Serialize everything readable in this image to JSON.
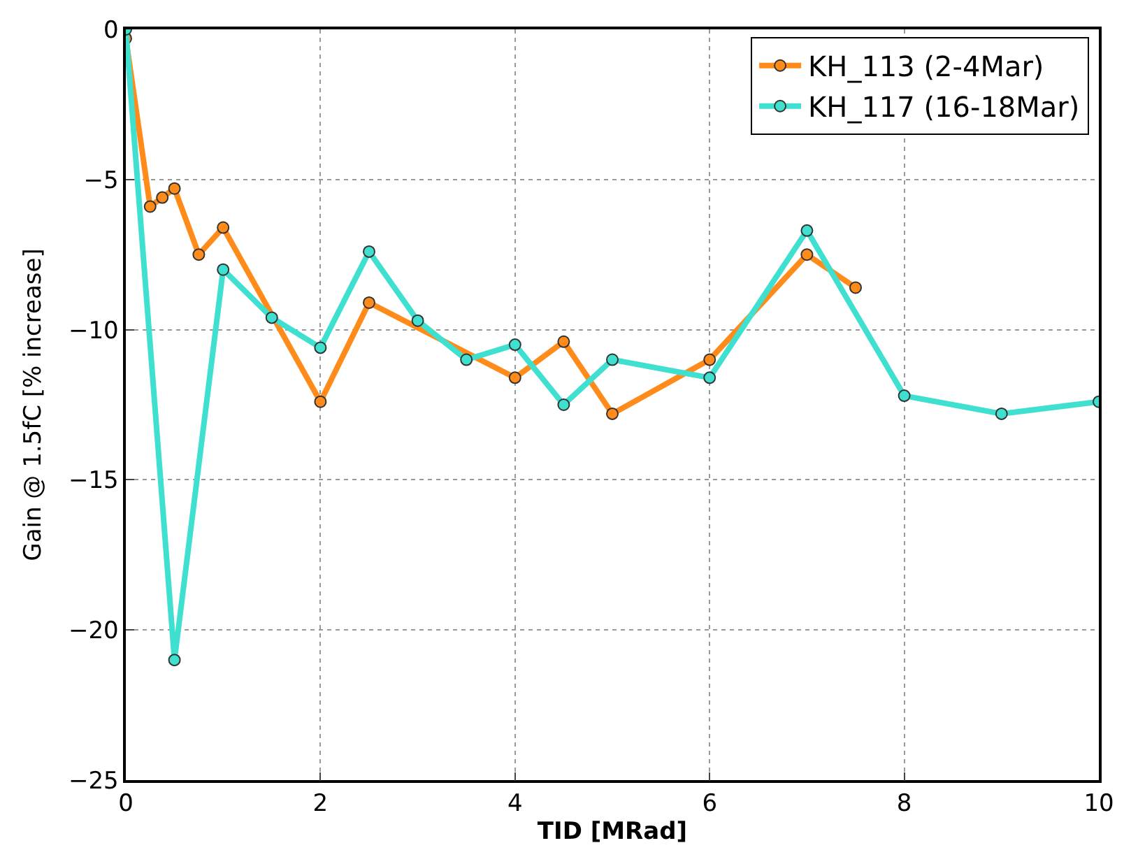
{
  "chart_data": {
    "type": "line",
    "xlabel": "TID [MRad]",
    "ylabel": "Gain @ 1.5fC [% increase]",
    "xlim": [
      0,
      10
    ],
    "ylim": [
      -25,
      0
    ],
    "xticks": [
      0,
      2,
      4,
      6,
      8,
      10
    ],
    "yticks": [
      -25,
      -20,
      -15,
      -10,
      -5,
      0
    ],
    "grid": true,
    "legend": "top right",
    "marker": "circle",
    "line_style": "solid",
    "series": [
      {
        "name": "KH_113 (2-4Mar)",
        "color": "#ff8c1a",
        "x": [
          0,
          0.25,
          0.375,
          0.5,
          0.75,
          1,
          2,
          2.5,
          4,
          4.5,
          5,
          6,
          7,
          7.5
        ],
        "values": [
          -0.3,
          -5.9,
          -5.6,
          -5.3,
          -7.5,
          -6.6,
          -12.4,
          -9.1,
          -11.6,
          -10.4,
          -12.8,
          -11.0,
          -7.5,
          -8.6
        ]
      },
      {
        "name": "KH_117 (16-18Mar)",
        "color": "#40e0d0",
        "x": [
          0,
          0.5,
          1,
          1.5,
          2,
          2.5,
          3,
          3.5,
          4,
          4.5,
          5,
          6,
          7,
          8,
          9,
          10
        ],
        "values": [
          0,
          -21.0,
          -8.0,
          -9.6,
          -10.6,
          -7.4,
          -9.7,
          -11.0,
          -10.5,
          -12.5,
          -11.0,
          -11.6,
          -6.7,
          -12.2,
          -12.8,
          -12.4
        ]
      }
    ]
  }
}
